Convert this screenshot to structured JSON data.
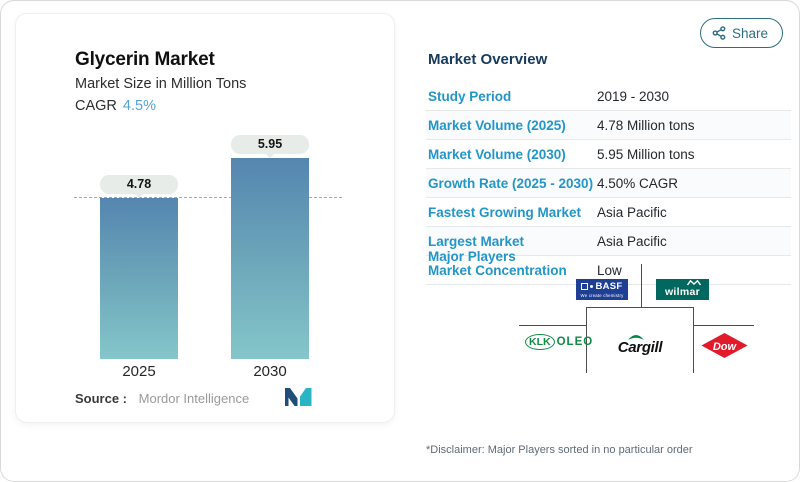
{
  "chart_data": {
    "type": "bar",
    "title": "Glycerin Market",
    "subtitle": "Market Size in Million Tons",
    "cagr_label": "CAGR",
    "cagr_value": "4.5%",
    "categories": [
      "2025",
      "2030"
    ],
    "values": [
      4.78,
      5.95
    ],
    "bar_labels": [
      "4.78",
      "5.95"
    ],
    "unit": "Million Tons",
    "reference_line": 4.78,
    "ylim": [
      0,
      6.2
    ],
    "legend": [],
    "grid": "off",
    "source_label": "Source :",
    "source_value": "Mordor Intelligence",
    "bar_color_top": "#5586b0",
    "bar_color_bottom": "#84c6ca",
    "value_pill_bg": "#e8ece8"
  },
  "share": {
    "label": "Share",
    "color": "#2d6e7e"
  },
  "overview": {
    "title": "Market Overview",
    "rows": [
      {
        "label": "Study Period",
        "value": "2019 - 2030"
      },
      {
        "label": "Market Volume (2025)",
        "value": "4.78 Million tons"
      },
      {
        "label": "Market Volume (2030)",
        "value": "5.95 Million tons"
      },
      {
        "label": "Growth Rate (2025 - 2030)",
        "value": "4.50% CAGR"
      },
      {
        "label": "Fastest Growing Market",
        "value": "Asia Pacific"
      },
      {
        "label": "Largest Market",
        "value": "Asia Pacific"
      },
      {
        "label": "Market Concentration",
        "value": "Low"
      }
    ],
    "label_color": "#2396c8",
    "major_players_label": "Major Players",
    "disclaimer": "*Disclaimer: Major Players sorted in no particular order"
  },
  "players": {
    "basf": {
      "name": "BASF",
      "tagline": "We create chemistry",
      "bg": "#1e3f94"
    },
    "wilmar": {
      "name": "wilmar",
      "bg": "#00685f"
    },
    "klk": {
      "klk": "KLK",
      "oleo": "OLEO",
      "color": "#128a43"
    },
    "cargill": {
      "name": "Cargill",
      "leaf_color": "#008542"
    },
    "dow": {
      "name": "Dow",
      "bg": "#e11a2c"
    }
  }
}
